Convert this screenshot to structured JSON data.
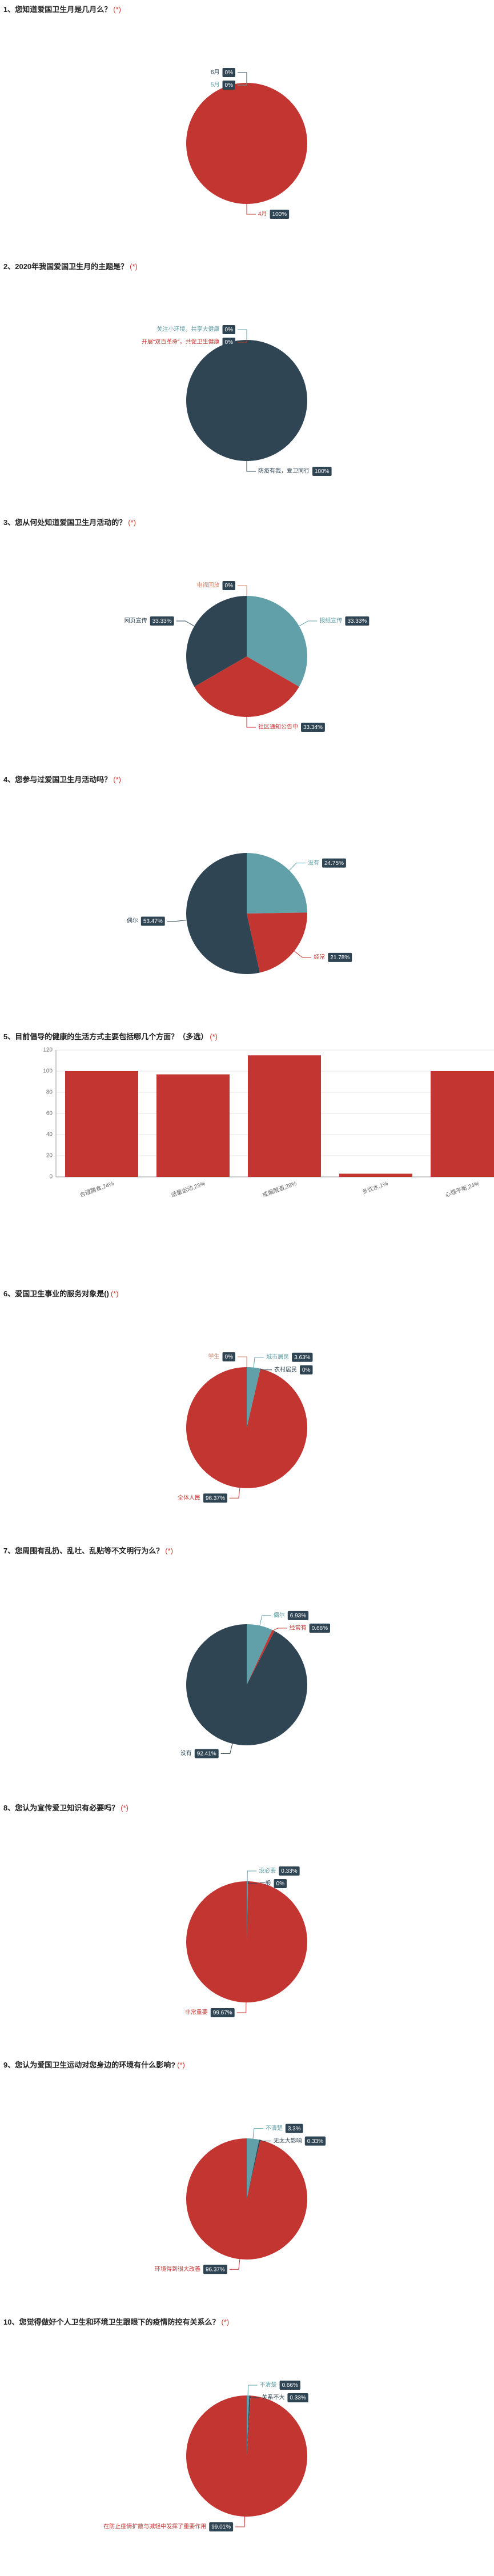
{
  "colors": {
    "red": "#c23531",
    "navy": "#2f4554",
    "teal": "#61a0a8",
    "orange": "#d48265",
    "badge_bg": "#2f4554",
    "required": "#d03a34"
  },
  "questions": [
    {
      "number": "1",
      "title": "1、您知道爱国卫生月是几月么？",
      "required": "(*)",
      "chart_data": {
        "type": "pie",
        "slices": [
          {
            "label": "6月",
            "percent": "0%",
            "value": 0,
            "color": "#2f4554"
          },
          {
            "label": "5月",
            "percent": "0%",
            "value": 0,
            "color": "#61a0a8"
          },
          {
            "label": "4月",
            "percent": "100%",
            "value": 100,
            "color": "#c23531"
          }
        ]
      }
    },
    {
      "number": "2",
      "title": "2、2020年我国爱国卫生月的主题是？",
      "required": "(*)",
      "chart_data": {
        "type": "pie",
        "slices": [
          {
            "label": "关注小环境，共享大健康",
            "percent": "0%",
            "value": 0,
            "color": "#61a0a8"
          },
          {
            "label": "开展“双百革命”，共促卫生健康",
            "percent": "0%",
            "value": 0,
            "color": "#c23531"
          },
          {
            "label": "防疫有我，爱卫同行",
            "percent": "100%",
            "value": 100,
            "color": "#2f4554"
          }
        ]
      }
    },
    {
      "number": "3",
      "title": "3、您从何处知道爱国卫生月活动的？",
      "required": "(*)",
      "chart_data": {
        "type": "pie",
        "slices": [
          {
            "label": "电视回放",
            "percent": "0%",
            "value": 0,
            "color": "#d48265"
          },
          {
            "label": "报纸宣传",
            "percent": "33.33%",
            "value": 33.33,
            "color": "#61a0a8"
          },
          {
            "label": "社区通知公告中",
            "percent": "33.34%",
            "value": 33.34,
            "color": "#c23531"
          },
          {
            "label": "网页宣传",
            "percent": "33.33%",
            "value": 33.33,
            "color": "#2f4554"
          }
        ]
      }
    },
    {
      "number": "4",
      "title": "4、您参与过爱国卫生月活动吗？",
      "required": "(*)",
      "chart_data": {
        "type": "pie",
        "slices": [
          {
            "label": "没有",
            "percent": "24.75%",
            "value": 24.75,
            "color": "#61a0a8"
          },
          {
            "label": "经常",
            "percent": "21.78%",
            "value": 21.78,
            "color": "#c23531"
          },
          {
            "label": "偶尔",
            "percent": "53.47%",
            "value": 53.47,
            "color": "#2f4554"
          }
        ]
      }
    },
    {
      "number": "5",
      "title": "5、目前倡导的健康的生活方式主要包括哪几个方面？（多选）",
      "required": "(*)",
      "chart_data": {
        "type": "bar",
        "categories": [
          "合理膳食,24%",
          "适量运动,23%",
          "戒烟限酒,28%",
          "多饮水,1%",
          "心理平衡,24%"
        ],
        "values": [
          100,
          97,
          115,
          3,
          100
        ],
        "ylim": [
          0,
          120
        ],
        "yticks": [
          "0",
          "20",
          "40",
          "60",
          "80",
          "100",
          "120"
        ],
        "color": "#c23531"
      }
    },
    {
      "number": "6",
      "title": "6、爱国卫生事业的服务对象是()",
      "required": "(*)",
      "chart_data": {
        "type": "pie",
        "slices": [
          {
            "label": "学生",
            "percent": "0%",
            "value": 0,
            "color": "#d48265"
          },
          {
            "label": "城市居民",
            "percent": "3.63%",
            "value": 3.63,
            "color": "#61a0a8"
          },
          {
            "label": "农村居民",
            "percent": "0%",
            "value": 0,
            "color": "#2f4554"
          },
          {
            "label": "全体人民",
            "percent": "96.37%",
            "value": 96.37,
            "color": "#c23531"
          }
        ]
      }
    },
    {
      "number": "7",
      "title": "7、您周围有乱扔、乱吐、乱贴等不文明行为么？",
      "required": "(*)",
      "chart_data": {
        "type": "pie",
        "slices": [
          {
            "label": "偶尔",
            "percent": "6.93%",
            "value": 6.93,
            "color": "#61a0a8"
          },
          {
            "label": "经常有",
            "percent": "0.66%",
            "value": 0.66,
            "color": "#c23531"
          },
          {
            "label": "没有",
            "percent": "92.41%",
            "value": 92.41,
            "color": "#2f4554"
          }
        ]
      }
    },
    {
      "number": "8",
      "title": "8、您认为宣传爱卫知识有必要吗？",
      "required": "(*)",
      "chart_data": {
        "type": "pie",
        "slices": [
          {
            "label": "没必要",
            "percent": "0.33%",
            "value": 0.33,
            "color": "#61a0a8"
          },
          {
            "label": "一般",
            "percent": "0%",
            "value": 0,
            "color": "#2f4554"
          },
          {
            "label": "非常重要",
            "percent": "99.67%",
            "value": 99.67,
            "color": "#c23531"
          }
        ]
      }
    },
    {
      "number": "9",
      "title": "9、您认为爱国卫生运动对您身边的环境有什么影响?",
      "required": "(*)",
      "chart_data": {
        "type": "pie",
        "slices": [
          {
            "label": "不清楚",
            "percent": "3.3%",
            "value": 3.3,
            "color": "#61a0a8"
          },
          {
            "label": "无太大影响",
            "percent": "0.33%",
            "value": 0.33,
            "color": "#2f4554"
          },
          {
            "label": "环境得到很大改善",
            "percent": "96.37%",
            "value": 96.37,
            "color": "#c23531"
          }
        ]
      }
    },
    {
      "number": "10",
      "title": "10、您觉得做好个人卫生和环境卫生跟眼下的疫情防控有关系么？",
      "required": "(*)",
      "chart_data": {
        "type": "pie",
        "slices": [
          {
            "label": "不清楚",
            "percent": "0.66%",
            "value": 0.66,
            "color": "#61a0a8"
          },
          {
            "label": "关系不大",
            "percent": "0.33%",
            "value": 0.33,
            "color": "#2f4554"
          },
          {
            "label": "在防止疫情扩散与减轻中发挥了重要作用",
            "percent": "99.01%",
            "value": 99.01,
            "color": "#c23531"
          }
        ]
      }
    }
  ]
}
